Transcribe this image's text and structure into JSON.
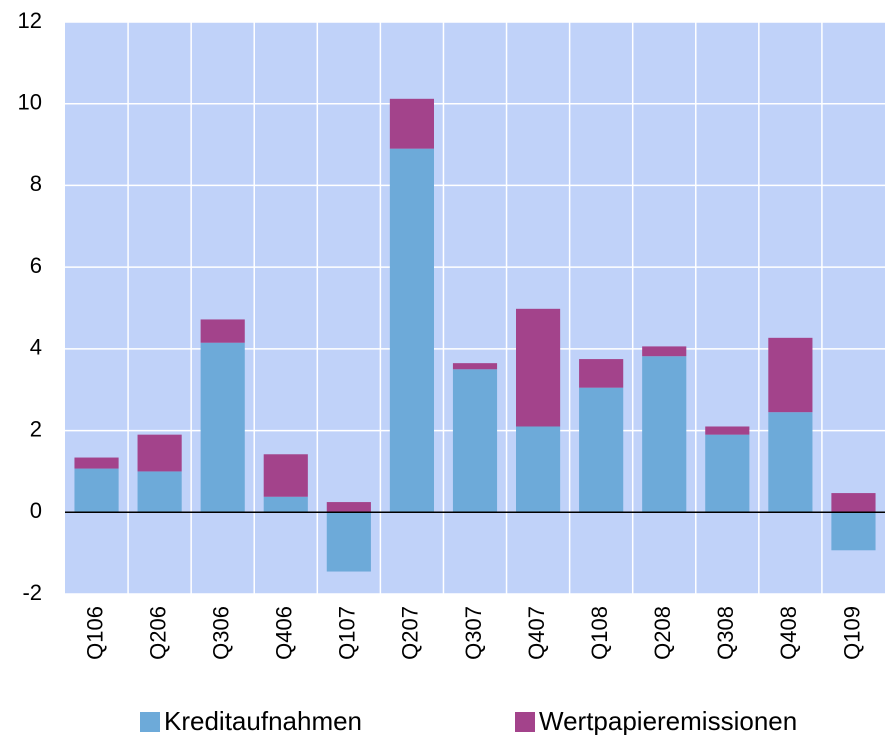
{
  "chart_data": {
    "type": "stacked_bar",
    "categories": [
      "Q106",
      "Q206",
      "Q306",
      "Q406",
      "Q107",
      "Q207",
      "Q307",
      "Q407",
      "Q108",
      "Q208",
      "Q308",
      "Q408",
      "Q109"
    ],
    "series": [
      {
        "name": "Kreditaufnahmen",
        "color": "#6daad9",
        "values": [
          1.07,
          1.0,
          4.15,
          0.38,
          -1.45,
          8.9,
          3.5,
          2.1,
          3.05,
          3.82,
          1.9,
          2.45,
          -0.93
        ]
      },
      {
        "name": "Wertpapieremissionen",
        "color": "#a3438b",
        "values": [
          0.27,
          0.9,
          0.57,
          1.04,
          0.25,
          1.22,
          0.15,
          2.88,
          0.7,
          0.24,
          0.2,
          1.82,
          0.47
        ]
      }
    ],
    "ylim": [
      -2,
      12
    ],
    "yticks": [
      -2,
      0,
      2,
      4,
      6,
      8,
      10,
      12
    ],
    "grid": true,
    "legend": "bottom"
  }
}
